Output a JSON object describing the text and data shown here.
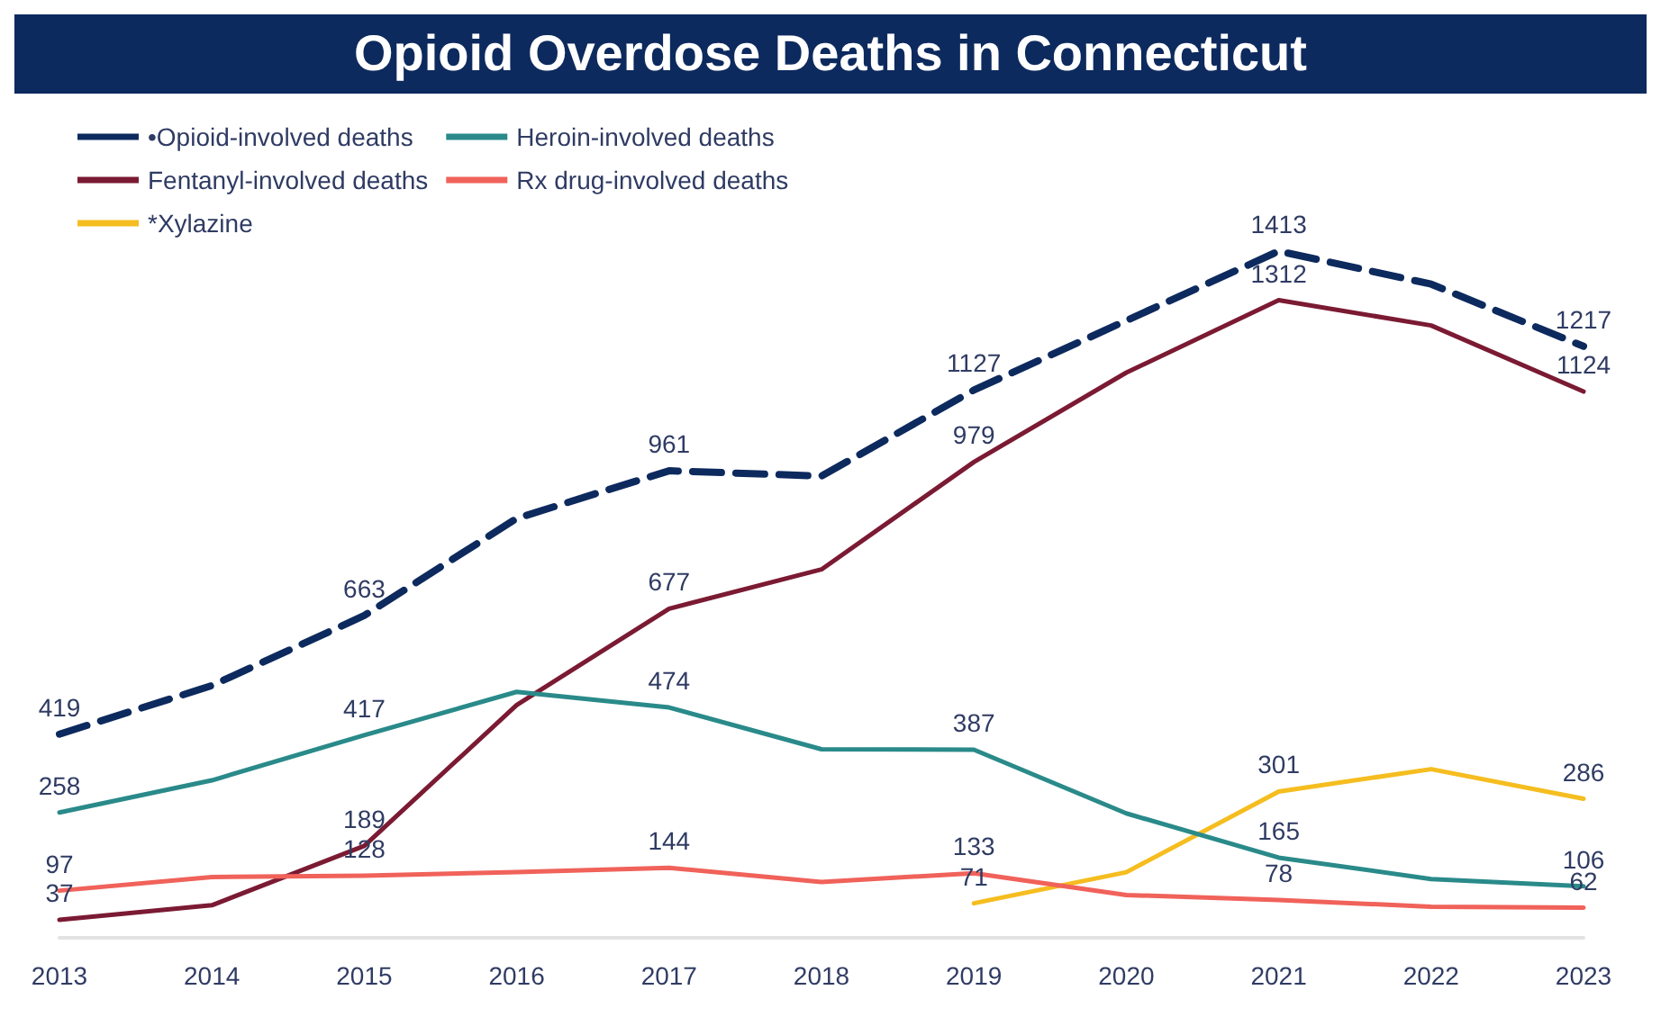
{
  "chart_data": {
    "type": "line",
    "title": "Opioid Overdose Deaths in Connecticut",
    "categories": [
      "2013",
      "2014",
      "2015",
      "2016",
      "2017",
      "2018",
      "2019",
      "2020",
      "2021",
      "2022",
      "2023"
    ],
    "series": [
      {
        "name": "•Opioid-involved deaths",
        "color": "#0d2a5e",
        "line_style": "dashed",
        "values": [
          419,
          519,
          663,
          863,
          961,
          950,
          1127,
          1270,
          1413,
          1345,
          1217
        ],
        "value_labels": [
          "419",
          null,
          "663",
          null,
          "961",
          null,
          "1127",
          null,
          "1413",
          null,
          "1217"
        ]
      },
      {
        "name": "Fentanyl-involved deaths",
        "color": "#7b1a33",
        "values": [
          37,
          67,
          189,
          479,
          677,
          758,
          979,
          1163,
          1312,
          1260,
          1124
        ],
        "value_labels": [
          "37",
          null,
          "189",
          null,
          "677",
          null,
          "979",
          null,
          "1312",
          null,
          "1124"
        ]
      },
      {
        "name": "*Xylazine",
        "color": "#f5bd1f",
        "values": [
          null,
          null,
          null,
          null,
          null,
          null,
          71,
          135,
          301,
          347,
          286
        ],
        "value_labels": [
          null,
          null,
          null,
          null,
          null,
          null,
          "71",
          null,
          "301",
          null,
          "286"
        ]
      },
      {
        "name": "Heroin-involved deaths",
        "color": "#2a8a8a",
        "values": [
          258,
          324,
          417,
          506,
          474,
          388,
          387,
          256,
          165,
          121,
          106
        ],
        "value_labels": [
          "258",
          null,
          "417",
          null,
          "474",
          null,
          "387",
          null,
          "165",
          null,
          "106"
        ]
      },
      {
        "name": "Rx drug-involved deaths",
        "color": "#f0625a",
        "values": [
          97,
          125,
          128,
          135,
          144,
          115,
          133,
          88,
          78,
          64,
          62
        ],
        "value_labels": [
          "97",
          null,
          "128",
          null,
          "144",
          null,
          "133",
          null,
          "78",
          null,
          "62"
        ]
      }
    ],
    "legend": "top left",
    "grid": false,
    "marker": "none",
    "line_style": "solid"
  }
}
